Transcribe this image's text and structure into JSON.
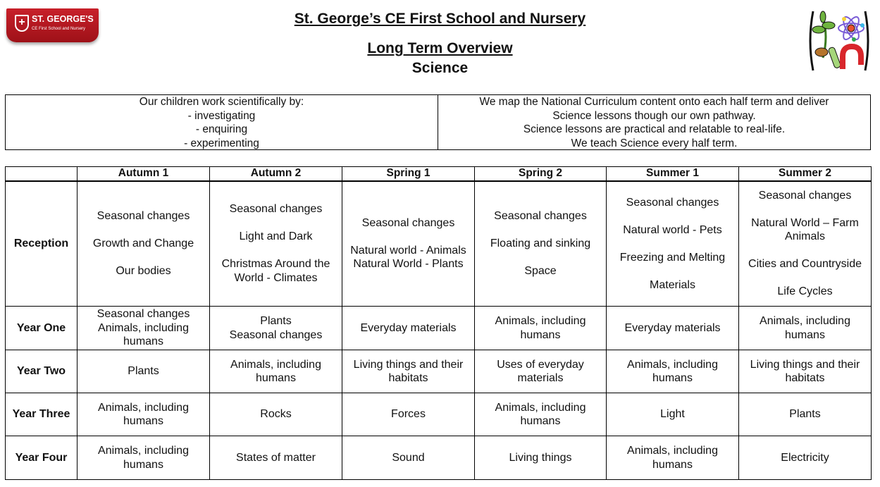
{
  "logo": {
    "name": "ST. GEORGE'S",
    "sub": "CE First School and Nursery"
  },
  "header": {
    "school": "St. George’s CE First School and Nursery",
    "doc": "Long Term Overview",
    "subject": "Science"
  },
  "intro": {
    "left": "Our children work scientifically by:\n- investigating\n- enquiring\n- experimenting",
    "right": "We map the National Curriculum content onto each half term and deliver\nScience lessons though our own pathway.\nScience lessons are practical and relatable to real-life.\nWe teach Science every half term."
  },
  "table": {
    "columns": [
      "",
      "Autumn 1",
      "Autumn 2",
      "Spring 1",
      "Spring 2",
      "Summer 1",
      "Summer 2"
    ],
    "rows": [
      {
        "label": "Reception",
        "cells": [
          "Seasonal changes\n\nGrowth and Change\n\nOur bodies",
          "Seasonal changes\n\nLight and Dark\n\nChristmas Around the World - Climates",
          "Seasonal changes\n\nNatural world - Animals\nNatural World - Plants",
          "Seasonal changes\n\nFloating and sinking\n\nSpace",
          "Seasonal changes\n\nNatural world - Pets\n\nFreezing and Melting\n\nMaterials",
          "Seasonal changes\n\nNatural World – Farm Animals\n\nCities and Countryside\n\nLife Cycles"
        ]
      },
      {
        "label": "Year One",
        "cells": [
          "Seasonal changes\nAnimals, including humans",
          "Plants\nSeasonal changes",
          "Everyday materials",
          "Animals, including humans",
          "Everyday materials",
          "Animals, including humans"
        ]
      },
      {
        "label": "Year Two",
        "cells": [
          "Plants",
          "Animals, including humans",
          "Living things and their habitats",
          "Uses of everyday materials",
          "Animals, including humans",
          "Living things and their habitats"
        ]
      },
      {
        "label": "Year Three",
        "cells": [
          "Animals, including humans",
          "Rocks",
          "Forces",
          "Animals, including humans",
          "Light",
          "Plants"
        ]
      },
      {
        "label": "Year Four",
        "cells": [
          "Animals, including humans",
          "States of matter",
          "Sound",
          "Living things",
          "Animals, including humans",
          "Electricity"
        ]
      }
    ]
  }
}
